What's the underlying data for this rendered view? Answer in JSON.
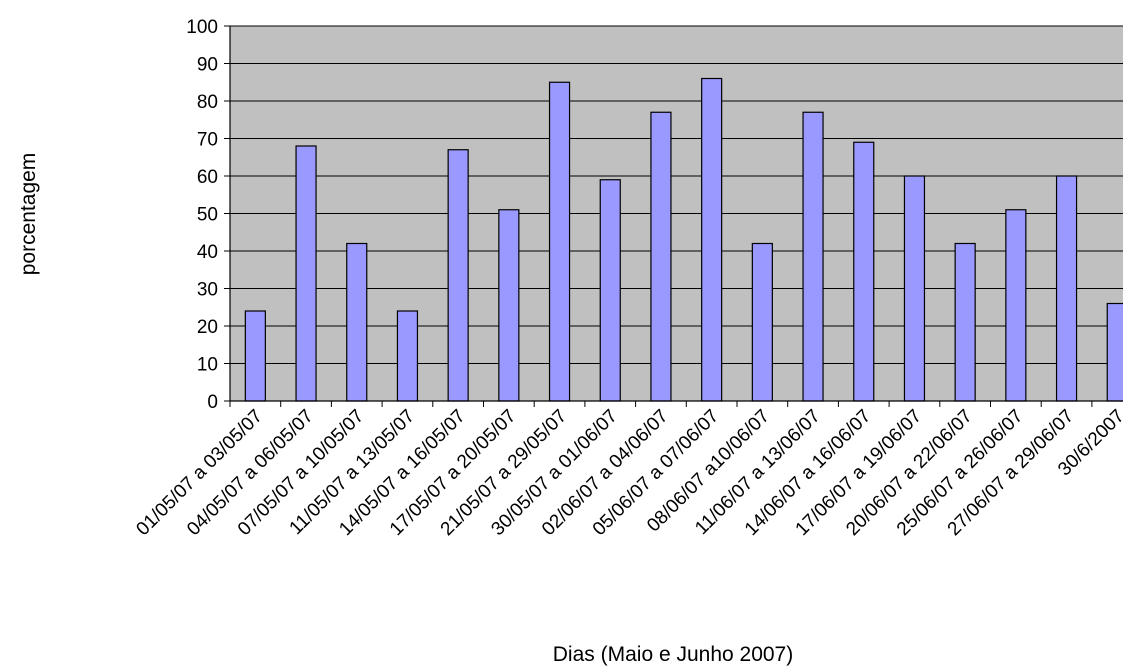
{
  "chart_data": {
    "type": "bar",
    "title": "",
    "xlabel": "Dias (Maio e Junho 2007)",
    "ylabel": "porcentagem",
    "ylim": [
      0,
      100
    ],
    "yticks": [
      0,
      10,
      20,
      30,
      40,
      50,
      60,
      70,
      80,
      90,
      100
    ],
    "grid": true,
    "legend": "none",
    "colors": {
      "plot_background": "#c0c0c0",
      "bar_fill": "#9999ff",
      "bar_stroke": "#000000",
      "gridline": "#000000"
    },
    "categories": [
      "01/05/07 a 03/05/07",
      "04/05/07 a 06/05/07",
      "07/05/07 a 10/05/07",
      "11/05/07 a 13/05/07",
      "14/05/07 a 16/05/07",
      "17/05/07 a 20/05/07",
      "21/05/07 a 29/05/07",
      "30/05/07 a 01/06/07",
      "02/06/07 a 04/06/07",
      "05/06/07 a 07/06/07",
      "08/06/07 a10/06/07",
      "11/06/07 a 13/06/07",
      "14/06/07 a 16/06/07",
      "17/06/07 a 19/06/07",
      "20/06/07 a 22/06/07",
      "25/06/07 a 26/06/07",
      "27/06/07 a 29/06/07",
      "30/6/2007"
    ],
    "values": [
      24,
      68,
      42,
      24,
      67,
      51,
      85,
      59,
      77,
      86,
      42,
      77,
      69,
      60,
      42,
      51,
      60,
      26
    ]
  }
}
